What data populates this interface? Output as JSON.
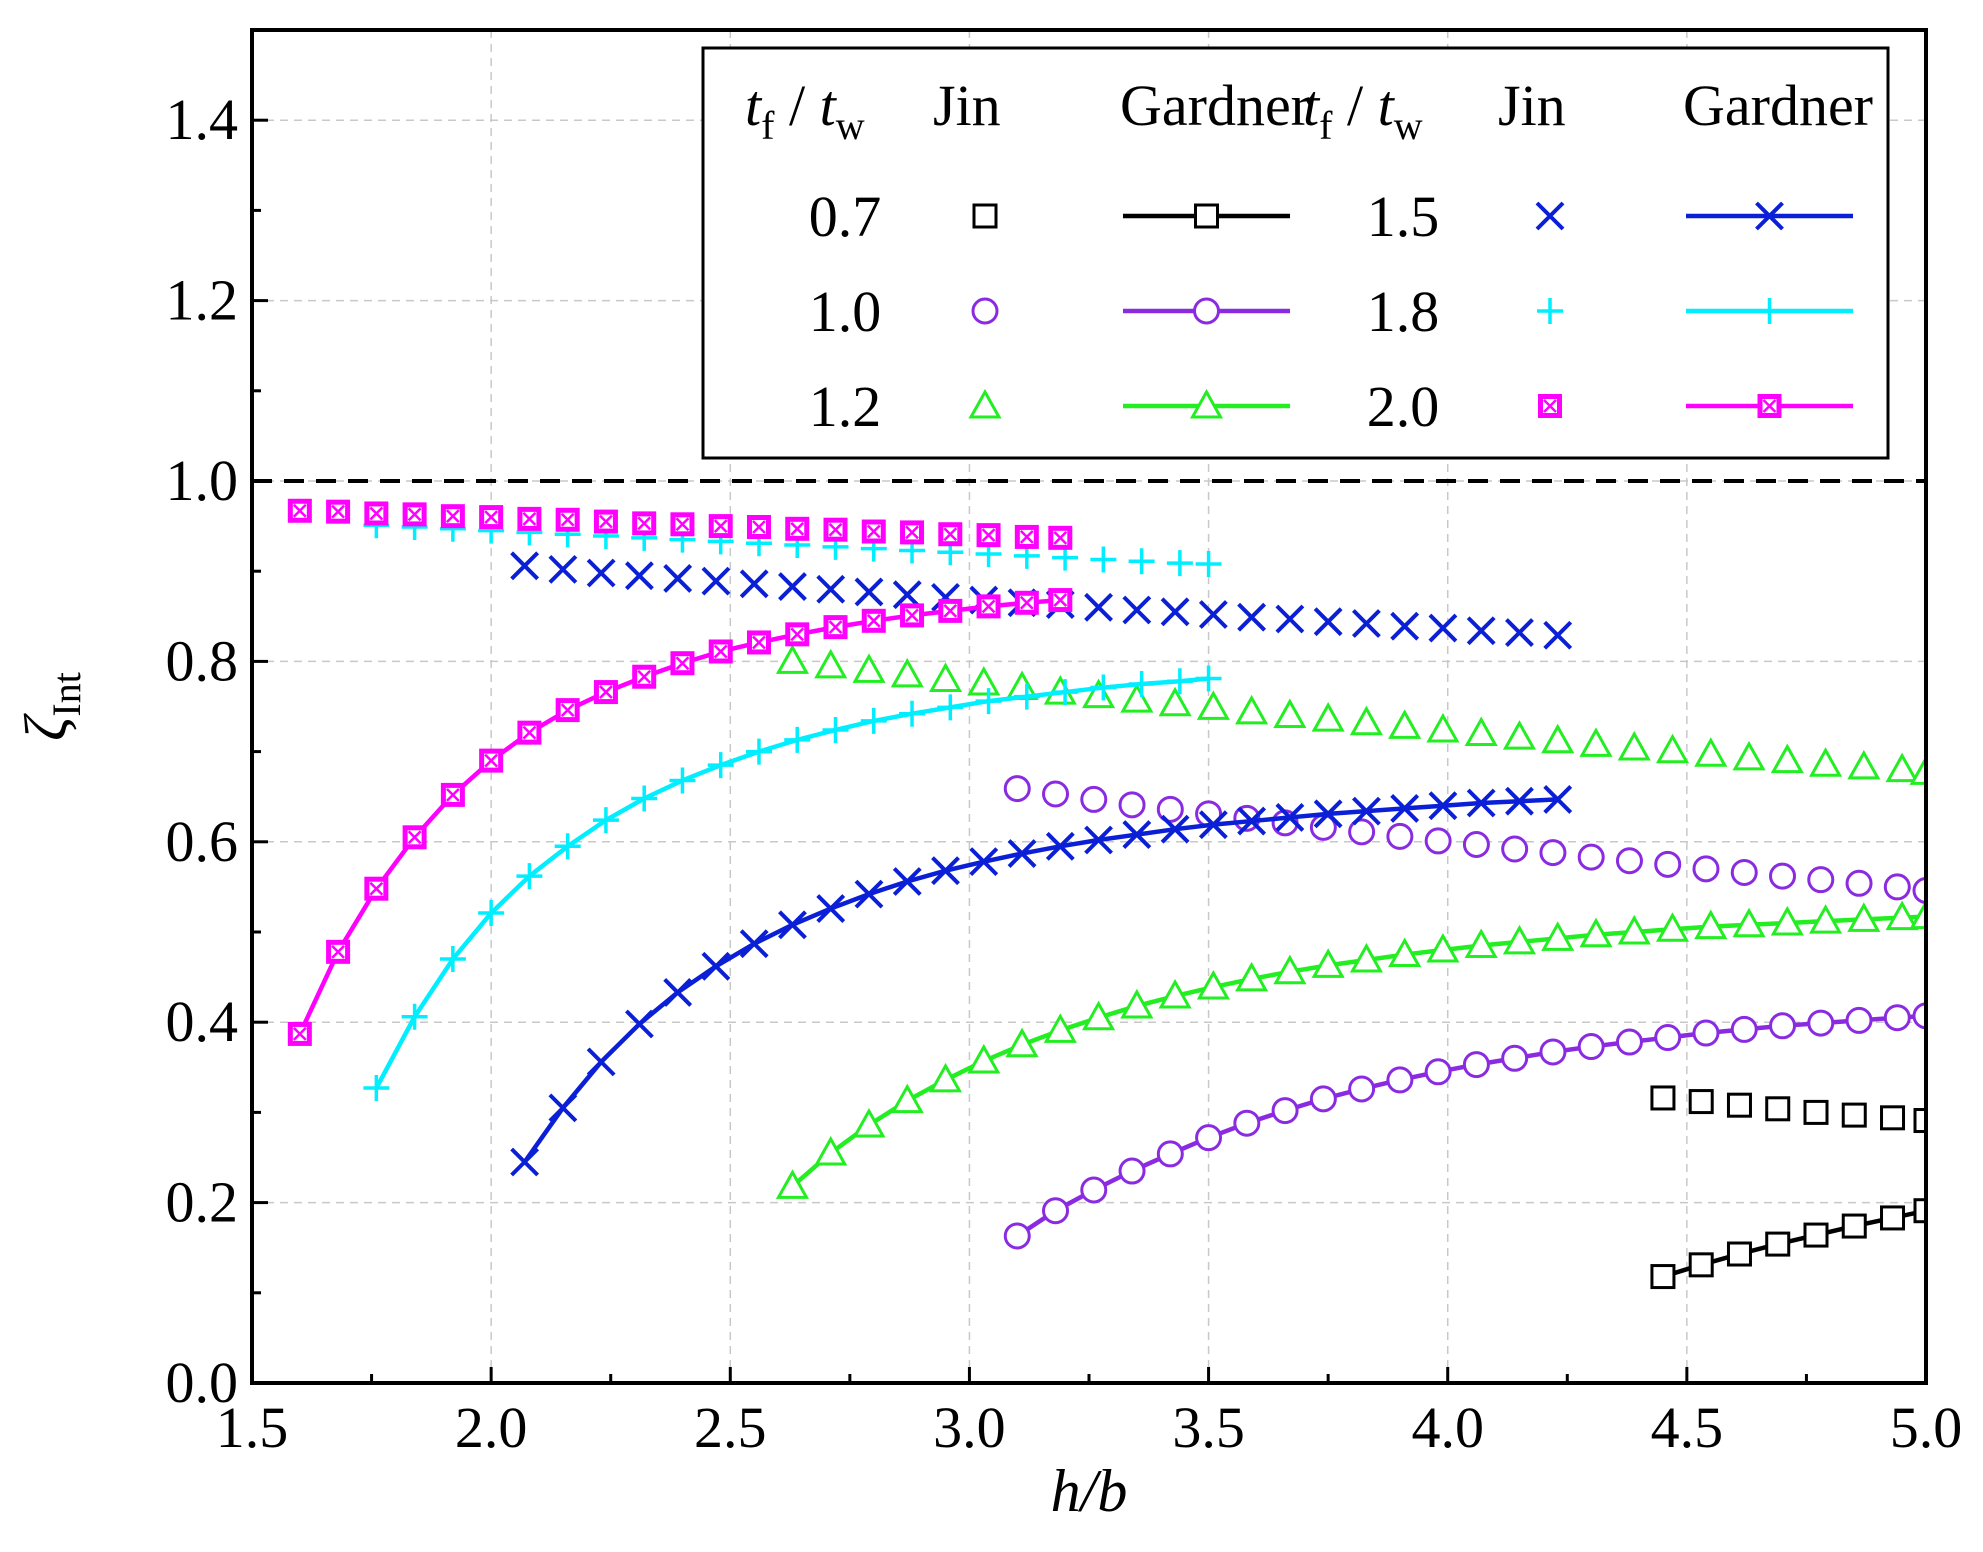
{
  "chart_data": {
    "type": "line",
    "xlabel": "h/b",
    "ylabel": "ζInt",
    "xlim": [
      1.5,
      5.0
    ],
    "ylim": [
      0.0,
      1.5
    ],
    "xticks": [
      "1.5",
      "2.0",
      "2.5",
      "3.0",
      "3.5",
      "4.0",
      "4.5",
      "5.0"
    ],
    "yticks": [
      "0.0",
      "0.2",
      "0.4",
      "0.6",
      "0.8",
      "1.0",
      "1.2",
      "1.4"
    ],
    "reference_line": {
      "y": 1.0,
      "style": "dashed",
      "color": "#000000"
    },
    "legend": {
      "headers": {
        "ratio": "t",
        "ratio_sub_f": "f",
        "ratio_sep": " / ",
        "ratio_t": "t",
        "ratio_sub_w": "w",
        "jin": "Jin",
        "gardner": "Gardner"
      },
      "position": "top-right"
    },
    "series": [
      {
        "ratio": "0.7",
        "color": "#000000",
        "marker": "square",
        "jin": {
          "x": [
            4.45,
            4.53,
            4.61,
            4.69,
            4.77,
            4.85,
            4.93,
            5.0
          ],
          "y": [
            0.316,
            0.312,
            0.308,
            0.304,
            0.3,
            0.297,
            0.294,
            0.291
          ]
        },
        "gardner": {
          "x": [
            4.45,
            4.53,
            4.61,
            4.69,
            4.77,
            4.85,
            4.93,
            5.0
          ],
          "y": [
            0.118,
            0.131,
            0.143,
            0.154,
            0.164,
            0.174,
            0.183,
            0.191
          ]
        }
      },
      {
        "ratio": "1.0",
        "color": "#8a2be2",
        "marker": "circle",
        "jin": {
          "x": [
            3.1,
            3.18,
            3.26,
            3.34,
            3.42,
            3.5,
            3.58,
            3.66,
            3.74,
            3.82,
            3.9,
            3.98,
            4.06,
            4.14,
            4.22,
            4.3,
            4.38,
            4.46,
            4.54,
            4.62,
            4.7,
            4.78,
            4.86,
            4.94,
            5.0
          ],
          "y": [
            0.659,
            0.653,
            0.647,
            0.641,
            0.636,
            0.631,
            0.626,
            0.621,
            0.616,
            0.611,
            0.606,
            0.601,
            0.597,
            0.592,
            0.588,
            0.583,
            0.579,
            0.575,
            0.57,
            0.566,
            0.562,
            0.558,
            0.554,
            0.55,
            0.546
          ]
        },
        "gardner": {
          "x": [
            3.1,
            3.18,
            3.26,
            3.34,
            3.42,
            3.5,
            3.58,
            3.66,
            3.74,
            3.82,
            3.9,
            3.98,
            4.06,
            4.14,
            4.22,
            4.3,
            4.38,
            4.46,
            4.54,
            4.62,
            4.7,
            4.78,
            4.86,
            4.94,
            5.0
          ],
          "y": [
            0.163,
            0.191,
            0.214,
            0.235,
            0.254,
            0.272,
            0.288,
            0.302,
            0.315,
            0.326,
            0.336,
            0.345,
            0.353,
            0.36,
            0.367,
            0.373,
            0.378,
            0.383,
            0.388,
            0.392,
            0.396,
            0.399,
            0.402,
            0.405,
            0.407
          ]
        }
      },
      {
        "ratio": "1.2",
        "color": "#22ee22",
        "marker": "triangle",
        "jin": {
          "x": [
            2.63,
            2.71,
            2.79,
            2.87,
            2.95,
            3.03,
            3.11,
            3.19,
            3.27,
            3.35,
            3.43,
            3.51,
            3.59,
            3.67,
            3.75,
            3.83,
            3.91,
            3.99,
            4.07,
            4.15,
            4.23,
            4.31,
            4.39,
            4.47,
            4.55,
            4.63,
            4.71,
            4.79,
            4.87,
            4.95,
            5.0
          ],
          "y": [
            0.8,
            0.795,
            0.79,
            0.785,
            0.78,
            0.776,
            0.771,
            0.766,
            0.762,
            0.757,
            0.753,
            0.749,
            0.744,
            0.74,
            0.736,
            0.732,
            0.728,
            0.724,
            0.72,
            0.716,
            0.712,
            0.708,
            0.704,
            0.701,
            0.697,
            0.693,
            0.69,
            0.686,
            0.683,
            0.68,
            0.677
          ]
        },
        "gardner": {
          "x": [
            2.63,
            2.71,
            2.79,
            2.87,
            2.95,
            3.03,
            3.11,
            3.19,
            3.27,
            3.35,
            3.43,
            3.51,
            3.59,
            3.67,
            3.75,
            3.83,
            3.91,
            3.99,
            4.07,
            4.15,
            4.23,
            4.31,
            4.39,
            4.47,
            4.55,
            4.63,
            4.71,
            4.79,
            4.87,
            4.95,
            5.0
          ],
          "y": [
            0.218,
            0.255,
            0.286,
            0.313,
            0.336,
            0.357,
            0.375,
            0.391,
            0.405,
            0.418,
            0.429,
            0.439,
            0.448,
            0.456,
            0.463,
            0.469,
            0.475,
            0.48,
            0.485,
            0.489,
            0.493,
            0.497,
            0.5,
            0.503,
            0.506,
            0.508,
            0.51,
            0.512,
            0.514,
            0.516,
            0.517
          ]
        }
      },
      {
        "ratio": "1.5",
        "color": "#0a1fd6",
        "marker": "x",
        "jin": {
          "x": [
            2.07,
            2.15,
            2.23,
            2.31,
            2.39,
            2.47,
            2.55,
            2.63,
            2.71,
            2.79,
            2.87,
            2.95,
            3.03,
            3.11,
            3.19,
            3.27,
            3.35,
            3.43,
            3.51,
            3.59,
            3.67,
            3.75,
            3.83,
            3.91,
            3.99,
            4.07,
            4.15,
            4.23
          ],
          "y": [
            0.906,
            0.902,
            0.898,
            0.895,
            0.892,
            0.889,
            0.886,
            0.883,
            0.88,
            0.877,
            0.874,
            0.871,
            0.868,
            0.865,
            0.863,
            0.86,
            0.857,
            0.855,
            0.852,
            0.849,
            0.847,
            0.844,
            0.842,
            0.839,
            0.837,
            0.834,
            0.832,
            0.829
          ]
        },
        "gardner": {
          "x": [
            2.07,
            2.15,
            2.23,
            2.31,
            2.39,
            2.47,
            2.55,
            2.63,
            2.71,
            2.79,
            2.87,
            2.95,
            3.03,
            3.11,
            3.19,
            3.27,
            3.35,
            3.43,
            3.51,
            3.59,
            3.67,
            3.75,
            3.83,
            3.91,
            3.99,
            4.07,
            4.15,
            4.23
          ],
          "y": [
            0.245,
            0.305,
            0.356,
            0.398,
            0.433,
            0.462,
            0.487,
            0.508,
            0.526,
            0.542,
            0.556,
            0.568,
            0.578,
            0.587,
            0.595,
            0.602,
            0.608,
            0.614,
            0.619,
            0.623,
            0.627,
            0.631,
            0.634,
            0.637,
            0.64,
            0.643,
            0.645,
            0.647
          ]
        }
      },
      {
        "ratio": "1.8",
        "color": "#00eeff",
        "marker": "plus",
        "jin": {
          "x": [
            1.76,
            1.84,
            1.92,
            2.0,
            2.08,
            2.16,
            2.24,
            2.32,
            2.4,
            2.48,
            2.56,
            2.64,
            2.72,
            2.8,
            2.88,
            2.96,
            3.04,
            3.12,
            3.2,
            3.28,
            3.36,
            3.44,
            3.5
          ],
          "y": [
            0.951,
            0.949,
            0.947,
            0.945,
            0.943,
            0.941,
            0.939,
            0.937,
            0.935,
            0.933,
            0.931,
            0.929,
            0.927,
            0.925,
            0.923,
            0.921,
            0.919,
            0.917,
            0.915,
            0.913,
            0.911,
            0.909,
            0.908
          ]
        },
        "gardner": {
          "x": [
            1.76,
            1.84,
            1.92,
            2.0,
            2.08,
            2.16,
            2.24,
            2.32,
            2.4,
            2.48,
            2.56,
            2.64,
            2.72,
            2.8,
            2.88,
            2.96,
            3.04,
            3.12,
            3.2,
            3.28,
            3.36,
            3.44,
            3.5
          ],
          "y": [
            0.327,
            0.406,
            0.47,
            0.521,
            0.562,
            0.595,
            0.624,
            0.648,
            0.668,
            0.685,
            0.7,
            0.713,
            0.724,
            0.734,
            0.742,
            0.749,
            0.756,
            0.761,
            0.766,
            0.771,
            0.775,
            0.778,
            0.781
          ]
        }
      },
      {
        "ratio": "2.0",
        "color": "#ff00ff",
        "marker": "boxed-x",
        "jin": {
          "x": [
            1.6,
            1.68,
            1.76,
            1.84,
            1.92,
            2.0,
            2.08,
            2.16,
            2.24,
            2.32,
            2.4,
            2.48,
            2.56,
            2.64,
            2.72,
            2.8,
            2.88,
            2.96,
            3.04,
            3.12,
            3.19
          ],
          "y": [
            0.967,
            0.966,
            0.964,
            0.963,
            0.961,
            0.96,
            0.958,
            0.957,
            0.955,
            0.953,
            0.952,
            0.95,
            0.949,
            0.947,
            0.946,
            0.944,
            0.943,
            0.941,
            0.94,
            0.938,
            0.937
          ]
        },
        "gardner": {
          "x": [
            1.6,
            1.68,
            1.76,
            1.84,
            1.92,
            2.0,
            2.08,
            2.16,
            2.24,
            2.32,
            2.4,
            2.48,
            2.56,
            2.64,
            2.72,
            2.8,
            2.88,
            2.96,
            3.04,
            3.12,
            3.19
          ],
          "y": [
            0.387,
            0.478,
            0.548,
            0.605,
            0.652,
            0.69,
            0.721,
            0.746,
            0.766,
            0.783,
            0.798,
            0.811,
            0.821,
            0.83,
            0.838,
            0.845,
            0.851,
            0.856,
            0.861,
            0.865,
            0.868
          ]
        }
      }
    ]
  }
}
